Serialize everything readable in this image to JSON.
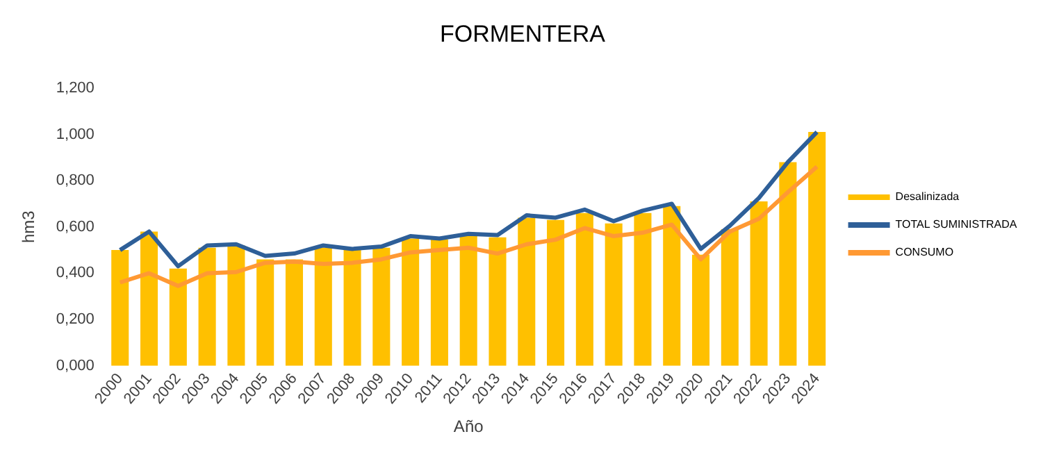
{
  "chart_data": {
    "type": "bar",
    "title": "FORMENTERA",
    "xlabel": "Año",
    "ylabel": "hm3",
    "categories": [
      "2000",
      "2001",
      "2002",
      "2003",
      "2004",
      "2005",
      "2006",
      "2007",
      "2008",
      "2009",
      "2010",
      "2011",
      "2012",
      "2013",
      "2014",
      "2015",
      "2016",
      "2017",
      "2018",
      "2019",
      "2020",
      "2021",
      "2022",
      "2023",
      "2024"
    ],
    "series": [
      {
        "name": "Desalinizada",
        "color": "#ffc000",
        "values": [
          0.5,
          0.58,
          0.42,
          0.51,
          0.52,
          0.46,
          0.46,
          0.51,
          0.5,
          0.51,
          0.55,
          0.545,
          0.56,
          0.555,
          0.64,
          0.63,
          0.66,
          0.615,
          0.66,
          0.69,
          0.48,
          0.59,
          0.71,
          0.88,
          1.01
        ]
      },
      {
        "name": "TOTAL SUMINISTRADA",
        "type": "line",
        "color": "#2e5f98",
        "values": [
          0.5,
          0.58,
          0.43,
          0.52,
          0.525,
          0.475,
          0.485,
          0.52,
          0.505,
          0.515,
          0.56,
          0.55,
          0.57,
          0.565,
          0.65,
          0.64,
          0.675,
          0.625,
          0.67,
          0.7,
          0.505,
          0.605,
          0.725,
          0.88,
          1.01
        ]
      },
      {
        "name": "CONSUMO",
        "type": "line",
        "color": "#ff9933",
        "values": [
          0.36,
          0.4,
          0.345,
          0.4,
          0.405,
          0.445,
          0.45,
          0.44,
          0.445,
          0.46,
          0.49,
          0.5,
          0.51,
          0.485,
          0.525,
          0.545,
          0.595,
          0.56,
          0.575,
          0.61,
          0.46,
          0.58,
          0.635,
          0.75,
          0.86
        ]
      }
    ],
    "ylim": [
      0,
      1.2
    ],
    "yticks": [
      {
        "value": 0,
        "label": "0,000"
      },
      {
        "value": 0.2,
        "label": "0,200"
      },
      {
        "value": 0.4,
        "label": "0,400"
      },
      {
        "value": 0.6,
        "label": "0,600"
      },
      {
        "value": 0.8,
        "label": "0,800"
      },
      {
        "value": 1,
        "label": "1,000"
      },
      {
        "value": 1.2,
        "label": "1,200"
      }
    ],
    "grid": false,
    "legend": "right",
    "marker": "none",
    "line_style": "solid"
  }
}
